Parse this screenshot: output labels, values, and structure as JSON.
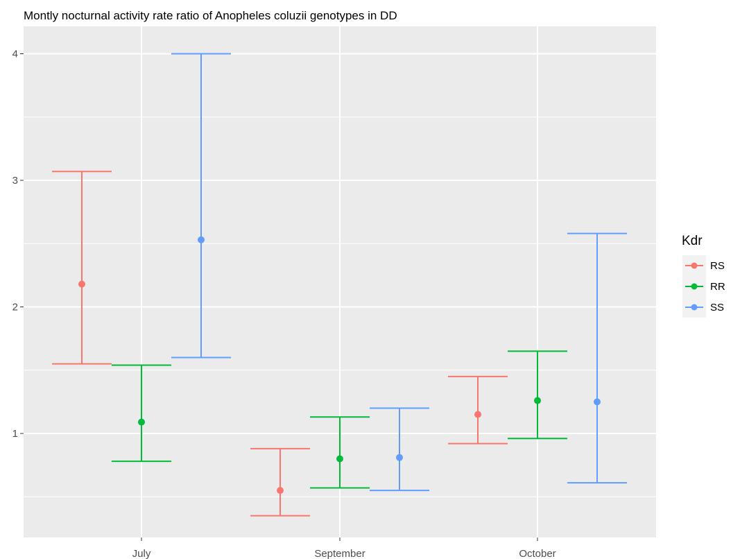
{
  "chart_data": {
    "type": "errorbar",
    "title": "Montly nocturnal activity rate ratio of Anopheles coluzii genotypes in DD",
    "xlabel": "",
    "ylabel": "",
    "categories": [
      "July",
      "September",
      "October"
    ],
    "y_ticks": [
      1,
      2,
      3,
      4
    ],
    "ylim": [
      0.3,
      4.15
    ],
    "grid": true,
    "legend": {
      "title": "Kdr",
      "position": "right"
    },
    "series": [
      {
        "name": "RS",
        "color": "#F8766D",
        "estimate": [
          2.18,
          0.55,
          1.15
        ],
        "lower": [
          1.55,
          0.35,
          0.92
        ],
        "upper": [
          3.07,
          0.88,
          1.45
        ]
      },
      {
        "name": "RR",
        "color": "#00BA38",
        "estimate": [
          1.09,
          0.8,
          1.26
        ],
        "lower": [
          0.78,
          0.57,
          0.96
        ],
        "upper": [
          1.54,
          1.13,
          1.65
        ]
      },
      {
        "name": "SS",
        "color": "#619CFF",
        "estimate": [
          2.53,
          0.81,
          1.25
        ],
        "lower": [
          1.6,
          0.55,
          0.61
        ],
        "upper": [
          4.0,
          1.2,
          2.58
        ]
      }
    ]
  }
}
